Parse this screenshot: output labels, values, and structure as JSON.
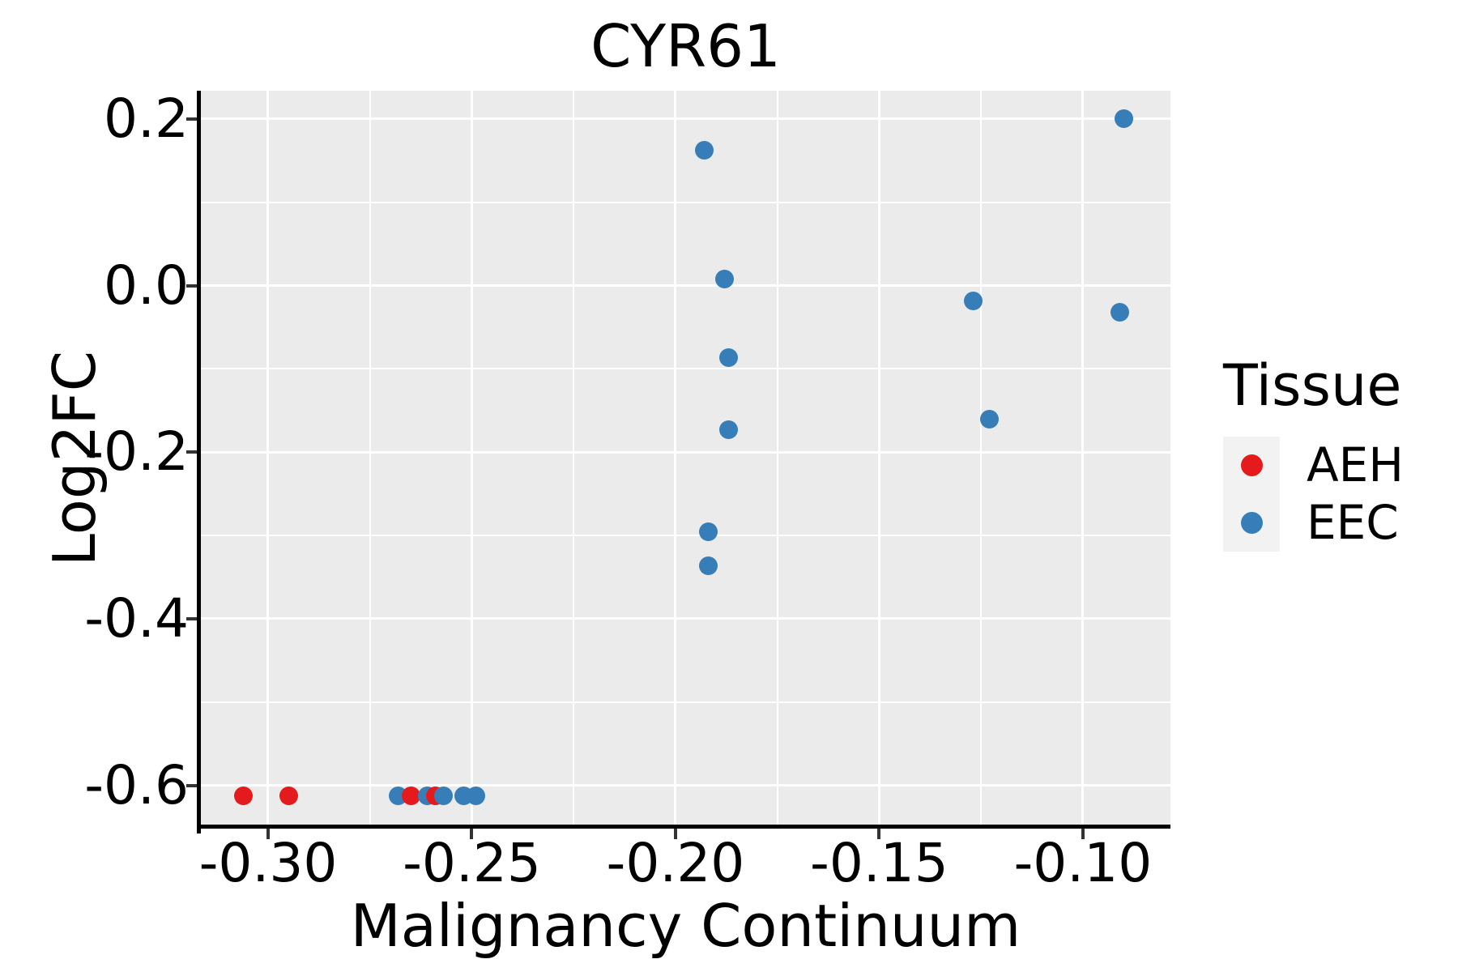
{
  "chart_data": {
    "type": "scatter",
    "title": "CYR61",
    "xlabel": "Malignancy Continuum",
    "ylabel": "Log2FC",
    "xlim": [
      -0.3165,
      -0.0785
    ],
    "ylim": [
      -0.647,
      0.234
    ],
    "x_ticks": {
      "values": [
        -0.3,
        -0.25,
        -0.2,
        -0.15,
        -0.1
      ],
      "labels": [
        "-0.30",
        "-0.25",
        "-0.20",
        "-0.15",
        "-0.10"
      ],
      "minor": [
        -0.275,
        -0.225,
        -0.175,
        -0.125
      ]
    },
    "y_ticks": {
      "values": [
        0.2,
        0.0,
        -0.2,
        -0.4,
        -0.6
      ],
      "labels": [
        "0.2",
        "0.0",
        "-0.2",
        "-0.4",
        "-0.6"
      ],
      "minor": [
        0.1,
        -0.1,
        -0.3,
        -0.5
      ]
    },
    "grid": "major+minor white on gray panel",
    "legend": {
      "title": "Tissue",
      "position": "right",
      "entries": [
        {
          "label": "AEH",
          "color": "#E41A1C"
        },
        {
          "label": "EEC",
          "color": "#377EB8"
        }
      ]
    },
    "series": [
      {
        "name": "AEH",
        "color": "#E41A1C",
        "points": [
          [
            -0.306,
            -0.612
          ],
          [
            -0.295,
            -0.612
          ],
          [
            -0.265,
            -0.612
          ],
          [
            -0.259,
            -0.612
          ]
        ]
      },
      {
        "name": "EEC",
        "color": "#377EB8",
        "points": [
          [
            -0.268,
            -0.612
          ],
          [
            -0.261,
            -0.612
          ],
          [
            -0.257,
            -0.612
          ],
          [
            -0.252,
            -0.612
          ],
          [
            -0.249,
            -0.612
          ],
          [
            -0.193,
            0.163
          ],
          [
            -0.188,
            0.008
          ],
          [
            -0.187,
            -0.086
          ],
          [
            -0.187,
            -0.173
          ],
          [
            -0.192,
            -0.295
          ],
          [
            -0.192,
            -0.336
          ],
          [
            -0.127,
            -0.018
          ],
          [
            -0.123,
            -0.16
          ],
          [
            -0.091,
            -0.032
          ],
          [
            -0.09,
            0.2
          ]
        ]
      }
    ],
    "style": {
      "background": "#FFFFFF",
      "panel_bg": "#EBEBEB",
      "grid_color": "#FFFFFF",
      "legend_key_bg": "#F2F2F2",
      "spine_color": "#000000",
      "tick_color": "#333333",
      "text_color": "#000000",
      "marker_diameter_px": 23
    }
  }
}
